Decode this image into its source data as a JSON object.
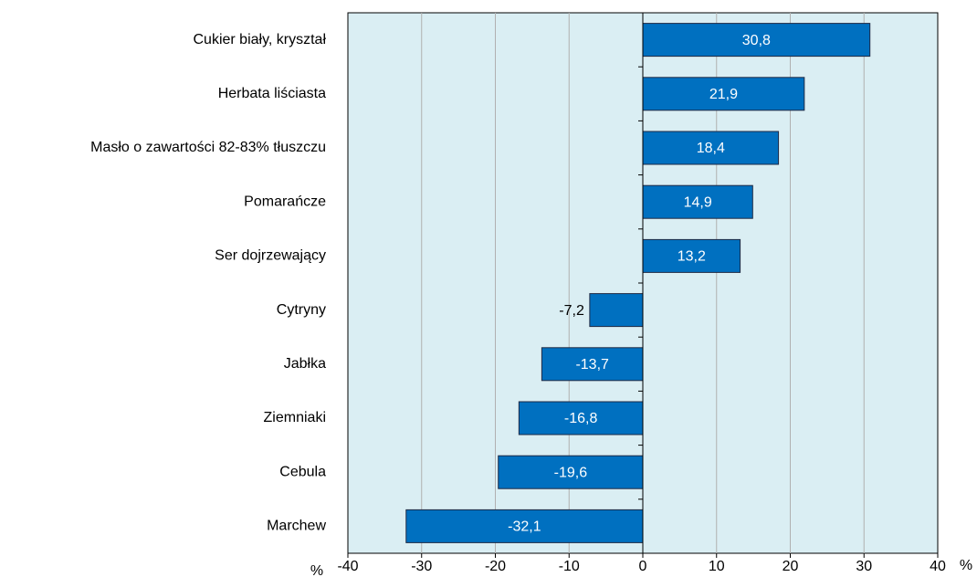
{
  "chart_data": {
    "type": "bar",
    "orientation": "horizontal",
    "categories": [
      "Cukier biały, kryształ",
      "Herbata liściasta",
      "Masło o zawartości 82-83% tłuszczu",
      "Pomarańcze",
      "Ser dojrzewający",
      "Cytryny",
      "Jabłka",
      "Ziemniaki",
      "Cebula",
      "Marchew"
    ],
    "values": [
      30.8,
      21.9,
      18.4,
      14.9,
      13.2,
      -7.2,
      -13.7,
      -16.8,
      -19.6,
      -32.1
    ],
    "value_labels": [
      "30,8",
      "21,9",
      "18,4",
      "14,9",
      "13,2",
      "-7,2",
      "-13,7",
      "-16,8",
      "-19,6",
      "-32,1"
    ],
    "color": "#0070c0",
    "x_axis_label": "%",
    "xlim": [
      -40,
      40
    ],
    "xticks": [
      -40,
      -30,
      -20,
      -10,
      0,
      10,
      20,
      30,
      40
    ],
    "grid": true
  }
}
